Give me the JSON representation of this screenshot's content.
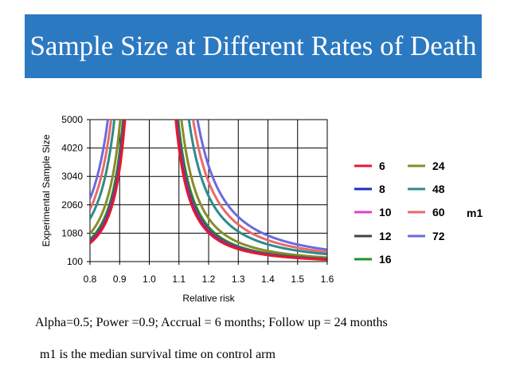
{
  "slide": {
    "title": "Sample Size at Different Rates of Death",
    "params_note": "Alpha=0.5; Power =0.9; Accrual = 6 months; Follow up = 24 months",
    "definition_note": "m1  is the median survival time on control arm"
  },
  "chart_data": {
    "type": "line",
    "title": "",
    "xlabel": "Relative risk",
    "ylabel": "Experimental Sample Size",
    "xlim": [
      0.8,
      1.6
    ],
    "ylim": [
      100,
      5000
    ],
    "xticks": [
      "0.8",
      "0.9",
      "1.0",
      "1.1",
      "1.2",
      "1.3",
      "1.4",
      "1.5",
      "1.6"
    ],
    "yticks": [
      "100",
      "1080",
      "2060",
      "3040",
      "4020",
      "5000"
    ],
    "legend_title": "m1",
    "legend_position": "right",
    "series": [
      {
        "name": "6",
        "color": "#e8192c",
        "scale": 1.0
      },
      {
        "name": "8",
        "color": "#1f2bbf",
        "scale": 1.03
      },
      {
        "name": "10",
        "color": "#e040c8",
        "scale": 1.06
      },
      {
        "name": "12",
        "color": "#444444",
        "scale": 1.1
      },
      {
        "name": "16",
        "color": "#23912e",
        "scale": 1.18
      },
      {
        "name": "24",
        "color": "#8a8a2a",
        "scale": 1.45
      },
      {
        "name": "48",
        "color": "#2f8a8a",
        "scale": 2.15
      },
      {
        "name": "60",
        "color": "#e86a6a",
        "scale": 2.6
      },
      {
        "name": "72",
        "color": "#6a6ae0",
        "scale": 3.1
      }
    ]
  }
}
